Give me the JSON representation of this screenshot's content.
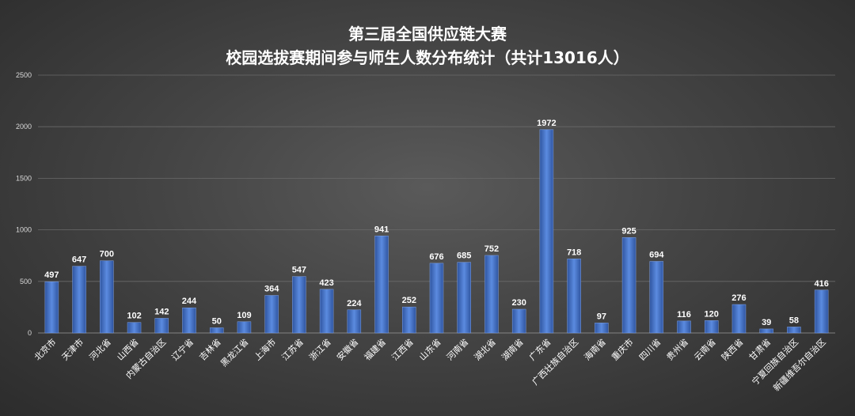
{
  "chart_data": {
    "type": "bar",
    "title": "第三届全国供应链大赛",
    "subtitle": "校园选拔赛期间参与师生人数分布统计（共计13016人）",
    "ylim": [
      0,
      2500
    ],
    "yticks": [
      0,
      500,
      1000,
      1500,
      2000,
      2500
    ],
    "grid": true,
    "bar_color": "#4472c4",
    "categories": [
      "北京市",
      "天津市",
      "河北省",
      "山西省",
      "内蒙古自治区",
      "辽宁省",
      "吉林省",
      "黑龙江省",
      "上海市",
      "江苏省",
      "浙江省",
      "安徽省",
      "福建省",
      "江西省",
      "山东省",
      "河南省",
      "湖北省",
      "湖南省",
      "广东省",
      "广西壮族自治区",
      "海南省",
      "重庆市",
      "四川省",
      "贵州省",
      "云南省",
      "陕西省",
      "甘肃省",
      "宁夏回族自治区",
      "新疆维吾尔自治区"
    ],
    "values": [
      497,
      647,
      700,
      102,
      142,
      244,
      50,
      109,
      364,
      547,
      423,
      224,
      941,
      252,
      676,
      685,
      752,
      230,
      1972,
      718,
      97,
      925,
      694,
      116,
      120,
      276,
      39,
      58,
      416
    ]
  }
}
